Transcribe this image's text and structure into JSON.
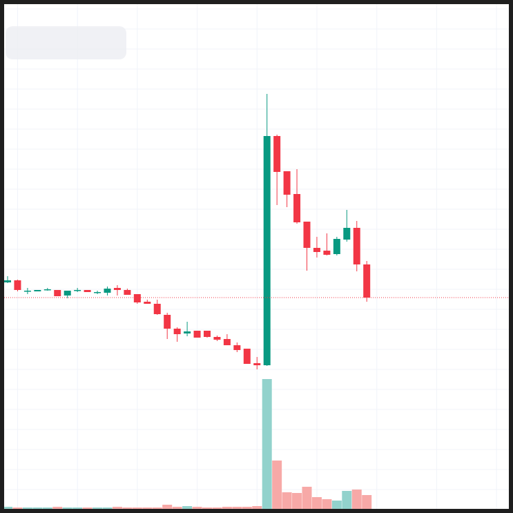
{
  "chart_data": {
    "type": "candlestick",
    "categories": [
      null,
      null,
      null,
      null,
      null,
      null,
      null,
      null,
      null,
      null,
      null,
      null,
      null,
      null,
      null,
      null,
      null,
      null,
      null,
      null,
      null,
      null,
      null,
      null,
      null,
      null,
      null,
      null,
      null,
      null,
      null,
      null,
      null,
      null,
      null,
      null,
      null
    ],
    "open": [
      131,
      134,
      119,
      118,
      121,
      120,
      112,
      120,
      120,
      117,
      116,
      123,
      120,
      114,
      103,
      100,
      84,
      64,
      57,
      61,
      61,
      52,
      49,
      40,
      35,
      14,
      11,
      343,
      292,
      259,
      219,
      181,
      177,
      172,
      193,
      210,
      157
    ],
    "high": [
      140,
      135,
      123,
      120,
      123,
      120,
      119,
      123,
      120,
      119,
      125,
      127,
      122,
      114,
      106,
      106,
      87,
      66,
      74,
      61,
      60,
      54,
      56,
      44,
      35,
      23,
      404,
      345,
      292,
      295,
      218,
      197,
      202,
      197,
      236,
      220,
      162
    ],
    "low": [
      130,
      118,
      114,
      118,
      119,
      111,
      108,
      117,
      117,
      114,
      112,
      112,
      113,
      100,
      100,
      84,
      49,
      45,
      53,
      51,
      51,
      46,
      40,
      30,
      13,
      5,
      10,
      243,
      240,
      216,
      148,
      167,
      170,
      170,
      190,
      147,
      103
    ],
    "close": [
      134,
      120,
      119,
      120,
      121,
      111,
      119,
      120,
      117,
      117,
      122,
      120,
      113,
      102,
      100,
      85,
      64,
      56,
      60,
      51,
      52,
      48,
      40,
      33,
      13,
      11,
      343,
      291,
      258,
      218,
      181,
      175,
      171,
      194,
      210,
      157,
      109
    ],
    "volume": [
      3,
      2,
      2,
      2,
      2,
      3,
      2,
      2,
      2,
      2,
      2,
      3,
      2,
      2,
      2,
      2,
      6,
      3,
      4,
      3,
      2,
      2,
      3,
      3,
      3,
      4,
      188,
      70,
      24,
      23,
      32,
      17,
      14,
      12,
      26,
      28,
      20
    ],
    "up_color": "#089981",
    "down_color": "#f23645",
    "volume_up_color": "#92d2cc",
    "volume_down_color": "#f7a9a7",
    "ylim": [
      0,
      534
    ],
    "volume_lim": [
      0,
      200
    ],
    "grid": true
  }
}
